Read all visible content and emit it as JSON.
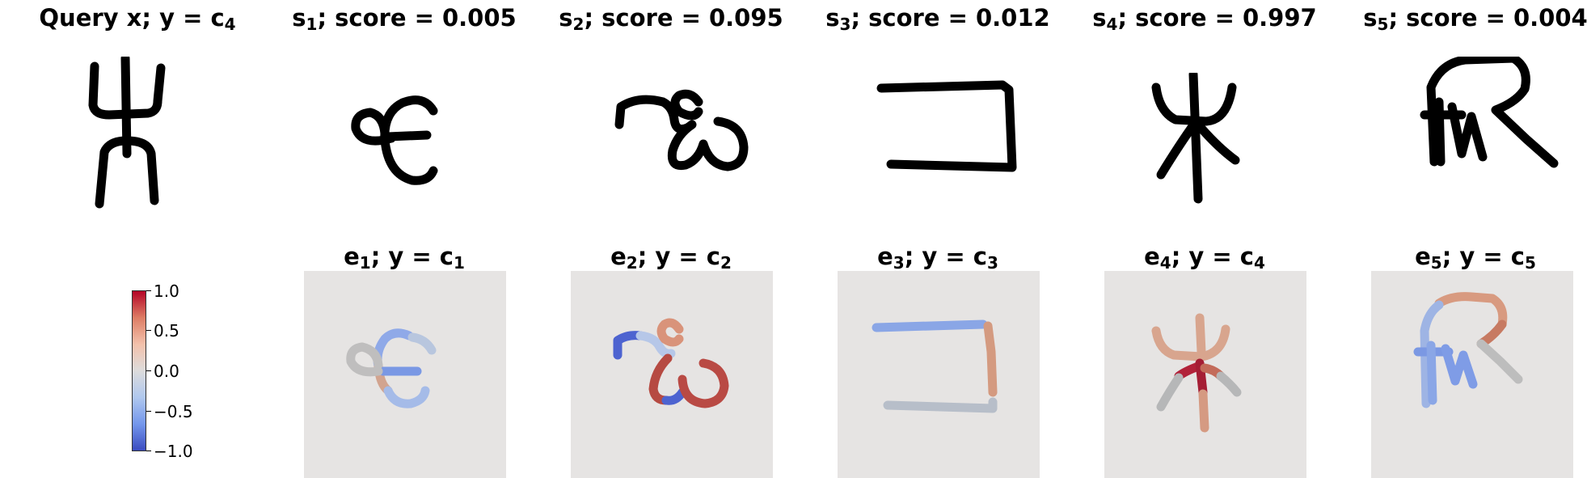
{
  "top_row": [
    {
      "label": "Query x; y = c",
      "sub": "4"
    },
    {
      "label_pre": "s",
      "sub": "1",
      "label_post": "; score = 0.005"
    },
    {
      "label_pre": "s",
      "sub": "2",
      "label_post": "; score = 0.095"
    },
    {
      "label_pre": "s",
      "sub": "3",
      "label_post": "; score = 0.012"
    },
    {
      "label_pre": "s",
      "sub": "4",
      "label_post": "; score = 0.997"
    },
    {
      "label_pre": "s",
      "sub": "5",
      "label_post": "; score = 0.004"
    }
  ],
  "bottom_row": [
    {
      "pre": "e",
      "sub1": "1",
      "mid": "; y = c",
      "sub2": "1"
    },
    {
      "pre": "e",
      "sub1": "2",
      "mid": "; y = c",
      "sub2": "2"
    },
    {
      "pre": "e",
      "sub1": "3",
      "mid": "; y = c",
      "sub2": "3"
    },
    {
      "pre": "e",
      "sub1": "4",
      "mid": "; y = c",
      "sub2": "4"
    },
    {
      "pre": "e",
      "sub1": "5",
      "mid": "; y = c",
      "sub2": "5"
    }
  ],
  "colorbar": {
    "ticks": [
      "1.0",
      "0.5",
      "0.0",
      "−0.5",
      "−1.0"
    ],
    "colormap": "coolwarm",
    "range": [
      -1.0,
      1.0
    ]
  },
  "colors": {
    "positive": "#b40426",
    "neutral": "#dddcdc",
    "negative": "#3b4cc0",
    "panel_bg": "#e6e4e3"
  }
}
